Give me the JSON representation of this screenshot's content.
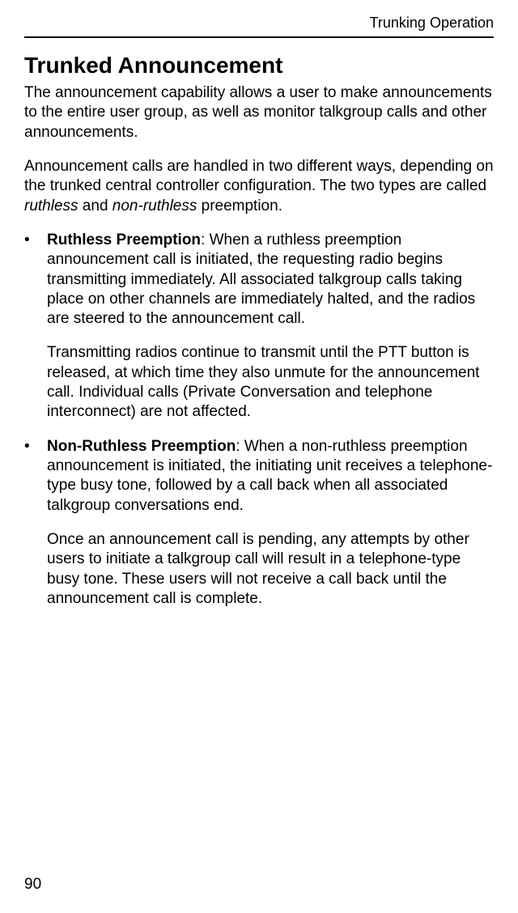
{
  "header": {
    "section_label": "Trunking Operation"
  },
  "title": "Trunked Announcement",
  "intro_para": "The announcement capability allows a user to make announcements to the entire user group, as well as monitor talkgroup calls and other announcements.",
  "para2_pre": "Announcement calls are handled in two different ways, depending on the trunked central controller configuration. The two types are called ",
  "para2_em1": "ruthless",
  "para2_mid": " and ",
  "para2_em2": "non-ruthless",
  "para2_post": " preemption.",
  "bullets": [
    {
      "label": "Ruthless Preemption",
      "p1_rest": ": When a ruthless preemption announcement call is initiated, the requesting radio begins transmitting immediately. All associated talkgroup calls taking place on other channels are immediately halted, and the radios are steered to the announcement call.",
      "p2": "Transmitting radios continue to transmit until the PTT button is released, at which time they also unmute for the announcement call. Individual calls (Private Conversation and telephone interconnect) are not affected."
    },
    {
      "label": "Non-Ruthless Preemption",
      "p1_rest": ": When a non-ruthless preemption announcement is initiated, the initiating unit receives a telephone-type busy tone, followed by a call back when all associated talkgroup conversations end.",
      "p2": "Once an announcement call is pending, any attempts by other users to initiate a talkgroup call will result in a telephone-type busy tone. These users will not receive a call back until the announcement call is complete."
    }
  ],
  "page_number": "90",
  "bullet_char": "•"
}
